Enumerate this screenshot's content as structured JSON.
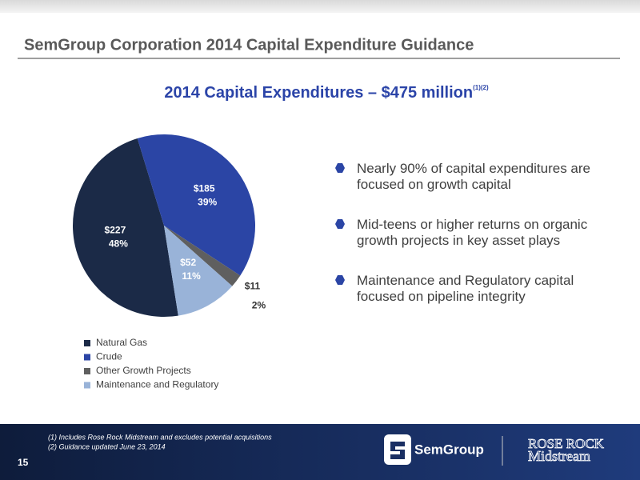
{
  "header": {
    "title": "SemGroup Corporation 2014 Capital Expenditure Guidance"
  },
  "chart_data": {
    "type": "pie",
    "title": "2014 Capital Expenditures – $475 million",
    "title_superscript": "(1)(2)",
    "categories": [
      "Natural Gas",
      "Crude",
      "Other Growth Projects",
      "Maintenance and Regulatory"
    ],
    "values": [
      227,
      185,
      11,
      52
    ],
    "value_labels": [
      "$227",
      "$185",
      "$11",
      "$52"
    ],
    "percent_labels": [
      "48%",
      "39%",
      "2%",
      "11%"
    ],
    "colors": [
      "#1b2a47",
      "#2b45a5",
      "#5f5f5f",
      "#99b3d8"
    ]
  },
  "bullets": [
    "Nearly 90% of capital expenditures are focused on growth capital",
    "Mid-teens or higher returns on organic growth projects in key asset plays",
    "Maintenance and Regulatory capital focused on pipeline integrity"
  ],
  "footnotes": [
    "(1)   Includes Rose Rock Midstream and excludes potential acquisitions",
    "(2)   Guidance updated June 23, 2014"
  ],
  "page_number": 15,
  "logos": [
    "SemGroup",
    "ROSE ROCK",
    "Midstream"
  ]
}
